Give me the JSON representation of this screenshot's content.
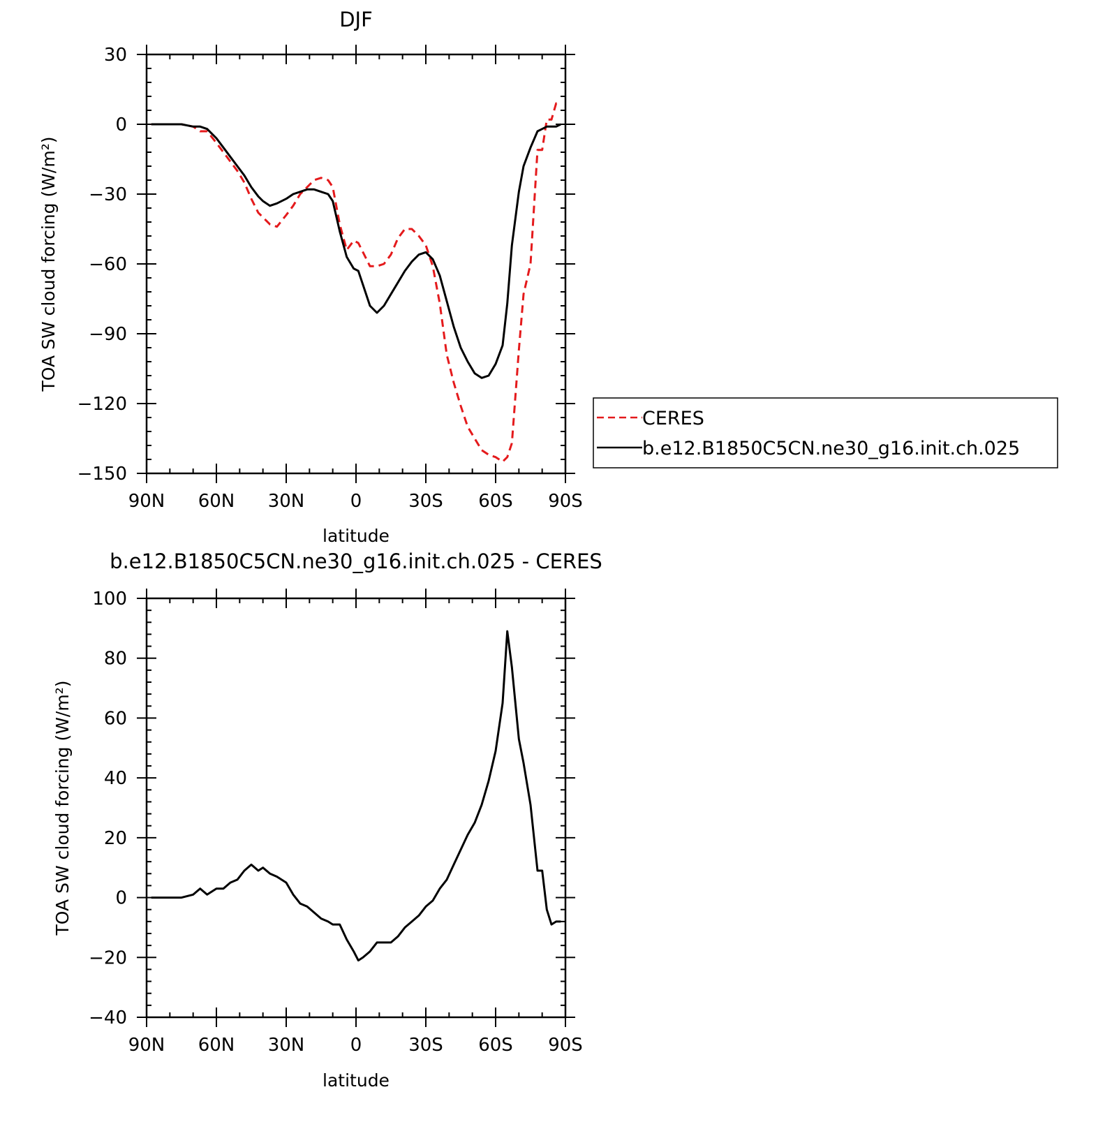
{
  "chart_data": [
    {
      "type": "line",
      "title": "DJF",
      "xlabel": "latitude",
      "ylabel": "TOA SW cloud forcing (W/m²)",
      "ylim": [
        -150,
        30
      ],
      "xlim": [
        -90,
        90
      ],
      "x_ticks": [
        {
          "value": -90,
          "label": "90N"
        },
        {
          "value": -60,
          "label": "60N"
        },
        {
          "value": -30,
          "label": "30N"
        },
        {
          "value": 0,
          "label": "0"
        },
        {
          "value": 30,
          "label": "30S"
        },
        {
          "value": 60,
          "label": "60S"
        },
        {
          "value": 90,
          "label": "90S"
        }
      ],
      "y_ticks": [
        30,
        0,
        -30,
        -60,
        -90,
        -120,
        -150
      ],
      "legend_position": "right",
      "series": [
        {
          "name": "CERES",
          "color": "#e41a1c",
          "dash": true,
          "x": [
            -88,
            -80,
            -75,
            -70,
            -67,
            -64,
            -60,
            -57,
            -54,
            -51,
            -48,
            -45,
            -42,
            -40,
            -37,
            -34,
            -30,
            -27,
            -24,
            -21,
            -18,
            -15,
            -12,
            -10,
            -7,
            -4,
            -1,
            1,
            3,
            6,
            9,
            12,
            15,
            18,
            21,
            24,
            27,
            30,
            33,
            36,
            39,
            42,
            45,
            48,
            51,
            54,
            57,
            60,
            63,
            65,
            67,
            70,
            72,
            75,
            78,
            80,
            82,
            84,
            86,
            88
          ],
          "y": [
            0,
            0,
            0,
            -1,
            -3,
            -3,
            -8,
            -12,
            -16,
            -20,
            -25,
            -32,
            -38,
            -40,
            -43,
            -44,
            -39,
            -35,
            -30,
            -27,
            -24,
            -23,
            -24,
            -27,
            -43,
            -54,
            -50,
            -51,
            -55,
            -61,
            -61,
            -60,
            -56,
            -49,
            -45,
            -45,
            -48,
            -52,
            -61,
            -77,
            -99,
            -111,
            -121,
            -130,
            -135,
            -140,
            -142,
            -143,
            -145,
            -143,
            -137,
            -97,
            -73,
            -60,
            -11,
            -11,
            2,
            2,
            9,
            8
          ]
        },
        {
          "name": "b.e12.B1850C5CN.ne30_g16.init.ch.025",
          "color": "#000000",
          "dash": false,
          "x": [
            -88,
            -80,
            -75,
            -70,
            -67,
            -64,
            -60,
            -57,
            -54,
            -51,
            -48,
            -45,
            -42,
            -40,
            -37,
            -34,
            -30,
            -27,
            -24,
            -21,
            -18,
            -15,
            -12,
            -10,
            -7,
            -4,
            -1,
            1,
            3,
            6,
            9,
            12,
            15,
            18,
            21,
            24,
            27,
            30,
            33,
            36,
            39,
            42,
            45,
            48,
            51,
            54,
            57,
            60,
            63,
            65,
            67,
            70,
            72,
            75,
            78,
            80,
            82,
            84,
            86,
            88
          ],
          "y": [
            0,
            0,
            0,
            -1,
            -1,
            -2,
            -6,
            -10,
            -14,
            -18,
            -22,
            -27,
            -31,
            -33,
            -35,
            -34,
            -32,
            -30,
            -29,
            -28,
            -28,
            -29,
            -30,
            -33,
            -46,
            -57,
            -62,
            -63,
            -69,
            -78,
            -81,
            -78,
            -73,
            -68,
            -63,
            -59,
            -56,
            -55,
            -58,
            -65,
            -76,
            -87,
            -96,
            -102,
            -107,
            -109,
            -108,
            -103,
            -95,
            -77,
            -52,
            -29,
            -18,
            -10,
            -3,
            -2,
            -1,
            -1,
            -1,
            0
          ]
        }
      ]
    },
    {
      "type": "line",
      "title": "b.e12.B1850C5CN.ne30_g16.init.ch.025 - CERES",
      "xlabel": "latitude",
      "ylabel": "TOA SW cloud forcing (W/m²)",
      "ylim": [
        -40,
        100
      ],
      "xlim": [
        -90,
        90
      ],
      "x_ticks": [
        {
          "value": -90,
          "label": "90N"
        },
        {
          "value": -60,
          "label": "60N"
        },
        {
          "value": -30,
          "label": "30N"
        },
        {
          "value": 0,
          "label": "0"
        },
        {
          "value": 30,
          "label": "30S"
        },
        {
          "value": 60,
          "label": "60S"
        },
        {
          "value": 90,
          "label": "90S"
        }
      ],
      "y_ticks": [
        100,
        80,
        60,
        40,
        20,
        0,
        -20,
        -40
      ],
      "series": [
        {
          "name": "",
          "color": "#000000",
          "dash": false,
          "x": [
            -88,
            -80,
            -75,
            -70,
            -67,
            -64,
            -60,
            -57,
            -54,
            -51,
            -48,
            -45,
            -42,
            -40,
            -37,
            -34,
            -30,
            -27,
            -24,
            -21,
            -18,
            -15,
            -12,
            -10,
            -7,
            -4,
            -1,
            1,
            3,
            6,
            9,
            12,
            15,
            18,
            21,
            24,
            27,
            30,
            33,
            36,
            39,
            42,
            45,
            48,
            51,
            54,
            57,
            60,
            63,
            65,
            67,
            70,
            72,
            75,
            78,
            80,
            82,
            84,
            86,
            88
          ],
          "y": [
            0,
            0,
            0,
            1,
            3,
            1,
            3,
            3,
            5,
            6,
            9,
            11,
            9,
            10,
            8,
            7,
            5,
            1,
            -2,
            -3,
            -5,
            -7,
            -8,
            -9,
            -9,
            -14,
            -18,
            -21,
            -20,
            -18,
            -15,
            -15,
            -15,
            -13,
            -10,
            -8,
            -6,
            -3,
            -1,
            3,
            6,
            11,
            16,
            21,
            25,
            31,
            39,
            49,
            65,
            89,
            77,
            53,
            45,
            31,
            9,
            9,
            -4,
            -9,
            -8,
            -8
          ]
        }
      ]
    }
  ]
}
